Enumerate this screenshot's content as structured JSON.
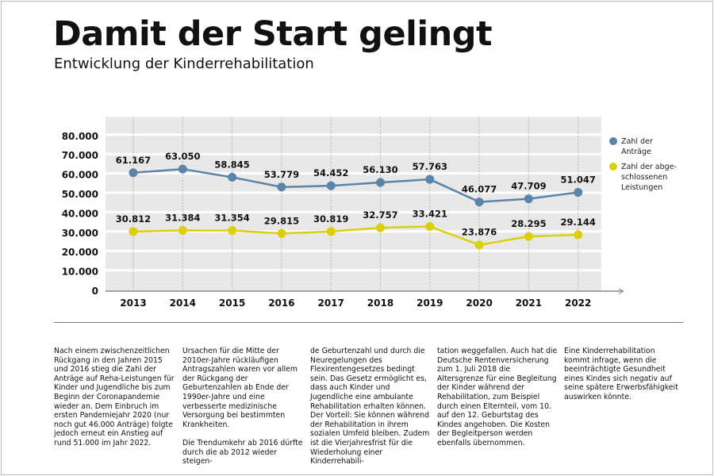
{
  "title": "Damit der Start gelingt",
  "subtitle": "Entwicklung der Kinderrehabilitation",
  "chart_data": {
    "type": "line",
    "categories": [
      "2013",
      "2014",
      "2015",
      "2016",
      "2017",
      "2018",
      "2019",
      "2020",
      "2021",
      "2022"
    ],
    "ylim": [
      0,
      90000
    ],
    "yticks": [
      0,
      10000,
      20000,
      30000,
      40000,
      50000,
      60000,
      70000,
      80000
    ],
    "ytick_labels": [
      "0",
      "10.000",
      "20.000",
      "30.000",
      "40.000",
      "50.000",
      "60.000",
      "70.000",
      "80.000"
    ],
    "grid": true,
    "legend_position": "right",
    "series": [
      {
        "name": "Zahl der Anträge",
        "color": "#5a84a8",
        "values": [
          61167,
          63050,
          58845,
          53779,
          54452,
          56130,
          57763,
          46077,
          47709,
          51047
        ],
        "labels": [
          "61.167",
          "63.050",
          "58.845",
          "53.779",
          "54.452",
          "56.130",
          "57.763",
          "46.077",
          "47.709",
          "51.047"
        ]
      },
      {
        "name": "Zahl der abgeschlossenen Leistungen",
        "color": "#dccf0a",
        "values": [
          30812,
          31384,
          31354,
          29815,
          30819,
          32757,
          33421,
          23876,
          28295,
          29144
        ],
        "labels": [
          "30.812",
          "31.384",
          "31.354",
          "29.815",
          "30.819",
          "32.757",
          "33.421",
          "23.876",
          "28.295",
          "29.144"
        ]
      }
    ]
  },
  "legend": {
    "items": [
      {
        "label": "Zahl der Anträge",
        "color": "#5a84a8"
      },
      {
        "label": "Zahl der abge-schlossenen Leistungen",
        "color": "#dccf0a"
      }
    ]
  },
  "text_columns": [
    [
      "Nach einem zwischenzeitlichen Rückgang in den Jahren 2015 und 2016 stieg die Zahl der Anträge auf Reha-Leistungen für Kinder und Jugendliche bis zum Beginn der Coronapandemie wieder an. Dem Einbruch im ersten Pandemiejahr 2020 (nur noch gut 46.000 Anträge) folgte jedoch erneut ein Anstieg auf rund 51.000 im Jahr 2022."
    ],
    [
      "Ursachen für die Mitte der 2010er-Jahre rückläufigen Antragszahlen waren vor allem der Rückgang der Geburtenzahlen ab Ende der 1990er-Jahre und eine verbesserte medizinische Versorgung bei bestimmten Krankheiten.",
      "Die Trendumkehr ab 2016 dürfte durch die ab 2012 wieder steigen-"
    ],
    [
      "de Geburtenzahl und durch die Neuregelungen des Flexirentengesetzes bedingt sein. Das Gesetz ermöglicht es, dass auch Kinder und Jugendliche eine ambulante Rehabilitation erhalten können. Der Vorteil: Sie können während der Rehabilitation in ihrem sozialen Umfeld bleiben. Zudem ist die Vierjahresfrist für die Wiederholung einer Kinderrehabili-"
    ],
    [
      "tation weggefallen. Auch hat die Deutsche Rentenversicherung zum 1. Juli 2018 die Altersgrenze für eine Begleitung der Kinder während der Rehabilitation, zum Beispiel durch einen Elternteil, vom 10. auf den 12. Geburtstag des Kindes angehoben. Die Kosten der Begleitperson werden ebenfalls übernommen."
    ],
    [
      "Eine Kinderrehabilitation kommt infrage, wenn die beeinträchtigte Gesundheit eines Kindes sich negativ auf seine spätere Erwerbsfähigkeit auswirken könnte."
    ]
  ]
}
